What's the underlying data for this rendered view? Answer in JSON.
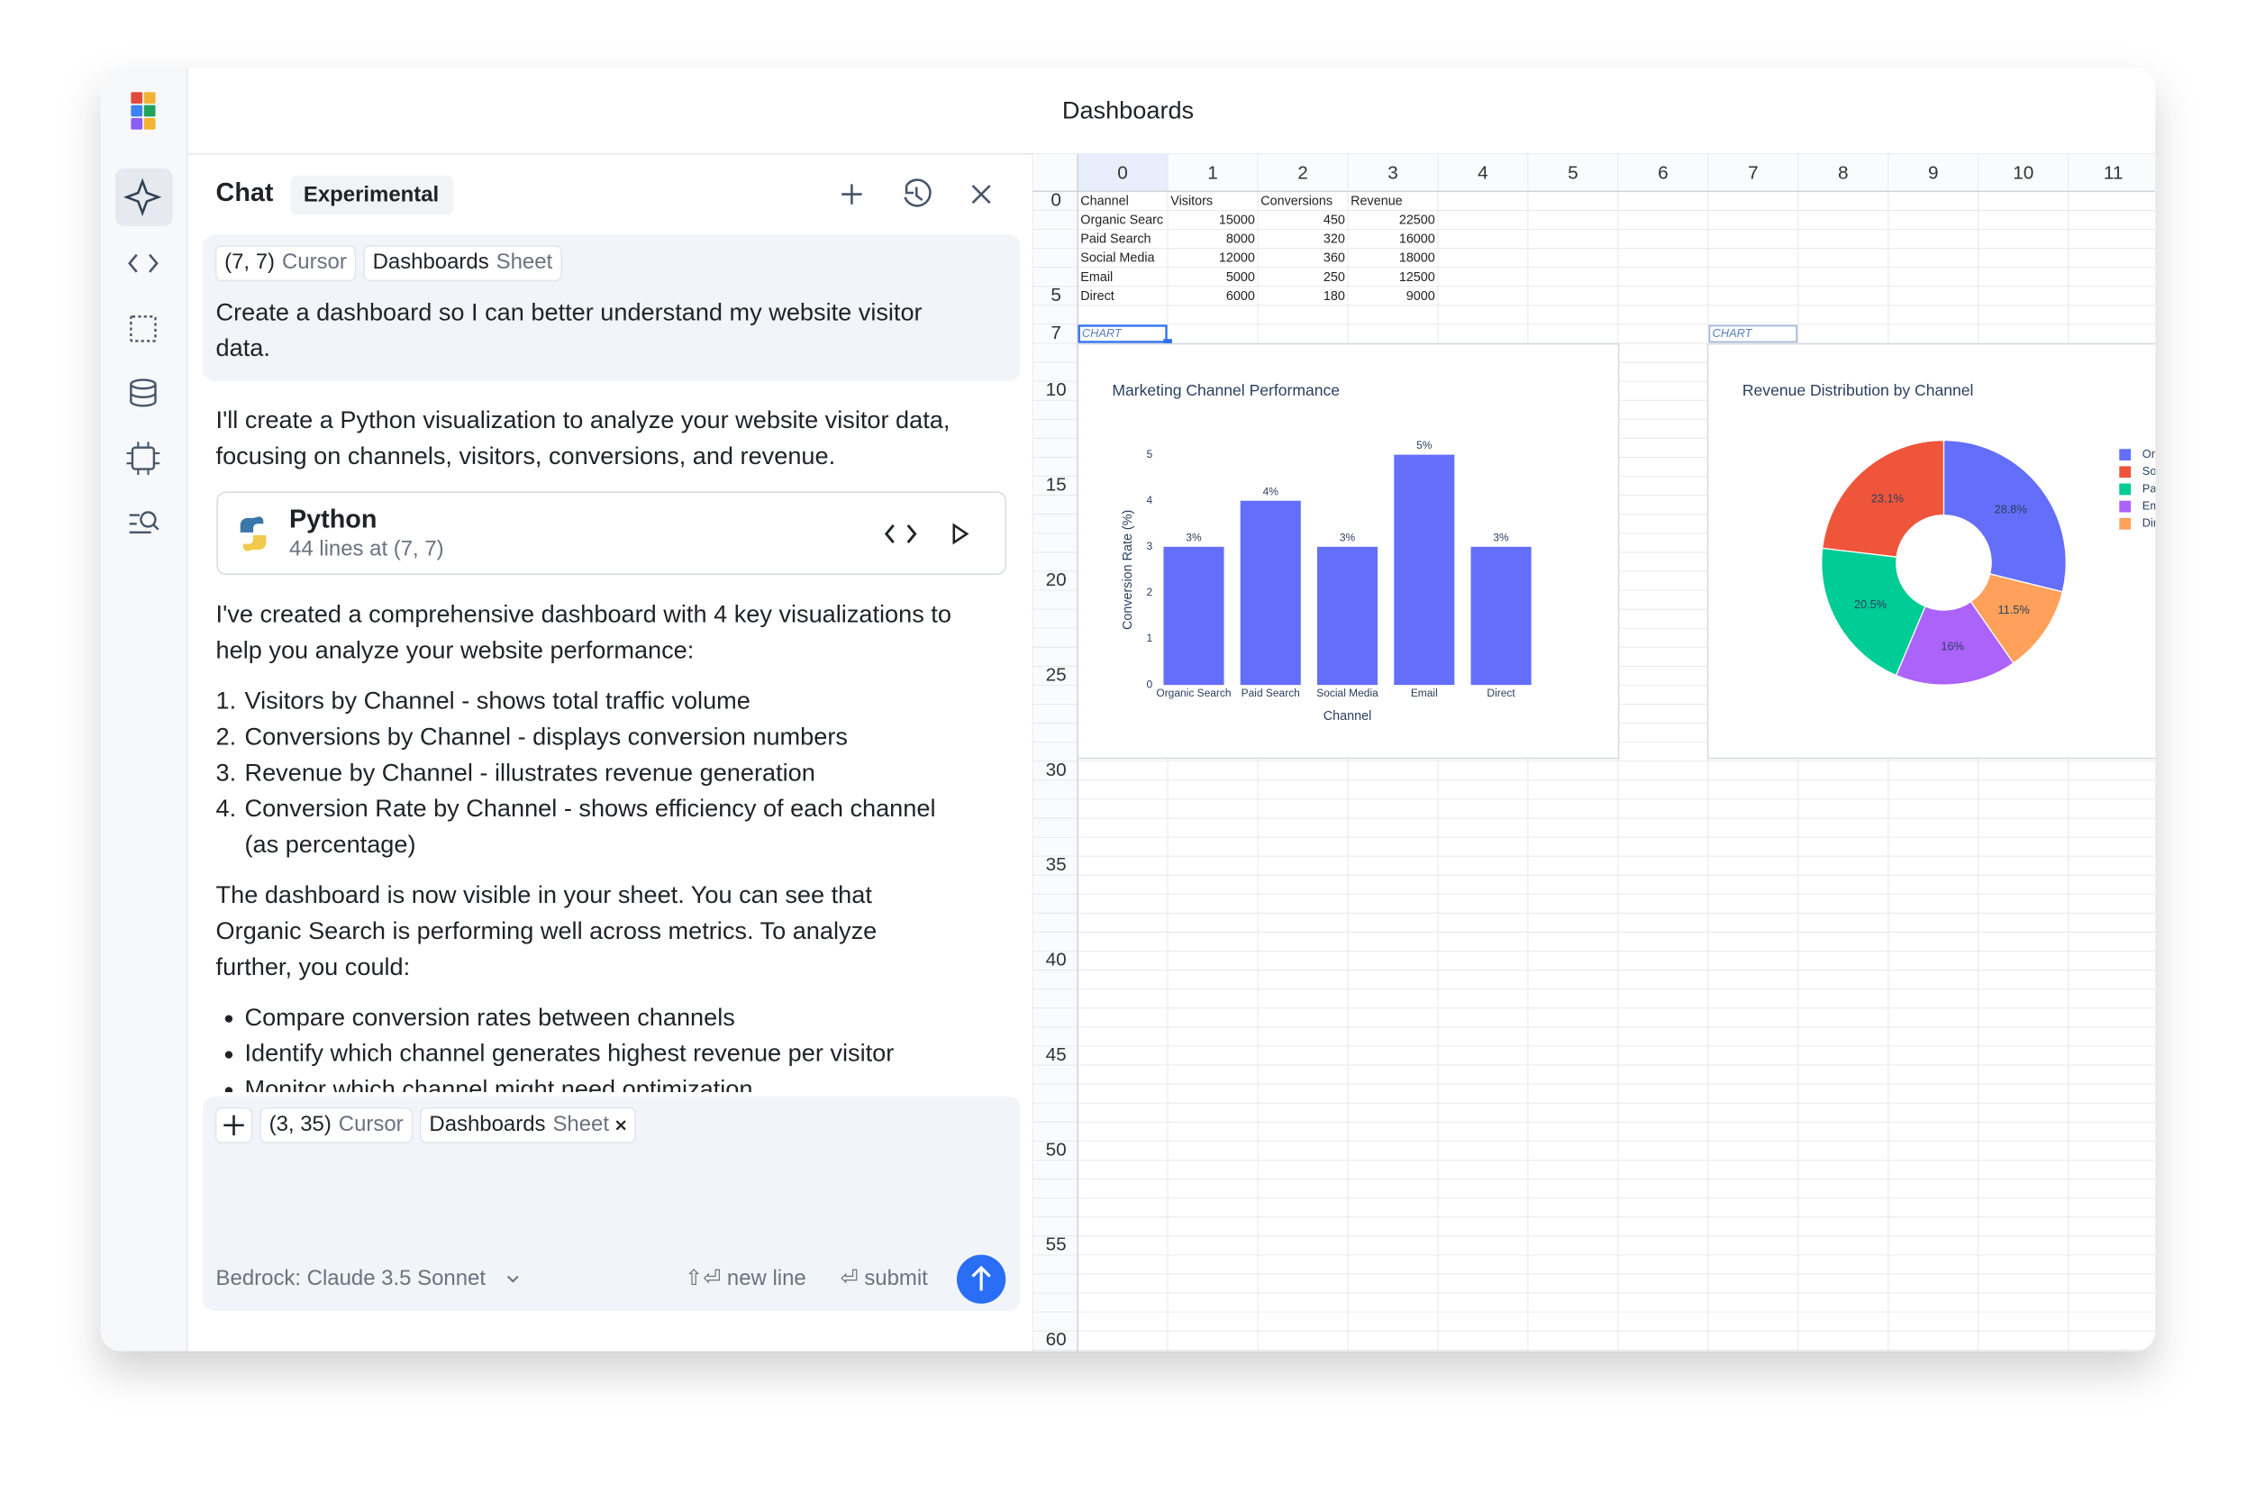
{
  "window": {
    "title": "Dashboards"
  },
  "chat": {
    "title": "Chat",
    "badge": "Experimental",
    "context": [
      {
        "label": "(7, 7)",
        "kind": "Cursor"
      },
      {
        "label": "Dashboards",
        "kind": "Sheet"
      }
    ],
    "user_message": [
      "Create a dashboard so I can better understand my website visitor",
      "data."
    ],
    "intro": [
      "I'll create a Python visualization to analyze your website visitor data,",
      "focusing on channels, visitors, conversions, and revenue."
    ],
    "code_block": {
      "language": "Python",
      "summary": "44 lines at (7, 7)"
    },
    "summary": [
      "I've created a comprehensive dashboard with 4 key visualizations to",
      "help you analyze your website performance:"
    ],
    "step_markers": [
      "1.",
      "2.",
      "3.",
      "4."
    ],
    "steps": [
      [
        "Visitors by Channel - shows total traffic volume"
      ],
      [
        "Conversions by Channel - displays conversion numbers"
      ],
      [
        "Revenue by Channel - illustrates revenue generation"
      ],
      [
        "Conversion Rate by Channel - shows efficiency of each channel",
        "(as percentage)"
      ]
    ],
    "note": [
      "The dashboard is now visible in your sheet. You can see that",
      "Organic Search is performing well across metrics. To analyze",
      "further, you could:"
    ],
    "suggestions": [
      "Compare conversion rates between channels",
      "Identify which channel generates highest revenue per visitor",
      "Monitor which channel might need optimization"
    ]
  },
  "composer": {
    "context": [
      {
        "label": "(3, 35)",
        "kind": "Cursor"
      },
      {
        "label": "Dashboards",
        "kind": "Sheet"
      }
    ],
    "model": "Bedrock: Claude 3.5 Sonnet",
    "hints": [
      "⇧⏎ new line",
      "⏎ submit"
    ]
  },
  "sheet": {
    "columns": [
      0,
      1,
      2,
      3,
      4,
      5,
      6,
      7,
      8,
      9,
      10,
      11
    ],
    "row_labels": [
      0,
      5,
      7,
      10,
      15,
      20,
      25,
      30,
      35,
      40,
      45,
      50,
      55,
      60
    ],
    "cells": [
      [
        "Channel",
        "Visitors",
        "Conversions",
        "Revenue"
      ],
      [
        "Organic Searc",
        15000,
        450,
        22500
      ],
      [
        "Paid Search",
        8000,
        320,
        16000
      ],
      [
        "Social Media",
        12000,
        360,
        18000
      ],
      [
        "Email",
        5000,
        250,
        12500
      ],
      [
        "Direct",
        6000,
        180,
        9000
      ]
    ],
    "chart_labels": [
      "CHART",
      "CHART"
    ]
  },
  "chart_data": [
    {
      "type": "bar",
      "title": "Marketing Channel Performance",
      "categories": [
        "Organic Search",
        "Paid Search",
        "Social Media",
        "Email",
        "Direct"
      ],
      "values": [
        3,
        4,
        3,
        5,
        3
      ],
      "value_labels": [
        "3%",
        "4%",
        "3%",
        "5%",
        "3%"
      ],
      "color": "#636efa",
      "ylim": [
        0,
        5
      ],
      "yticks": [
        0,
        1,
        2,
        3,
        4,
        5
      ],
      "xlabel": "Channel",
      "ylabel": "Conversion Rate (%)"
    },
    {
      "type": "pie",
      "title": "Revenue Distribution by Channel",
      "categories": [
        "Organic Search",
        "Social Media",
        "Paid Search",
        "Email",
        "Direct"
      ],
      "values": [
        28.8,
        23.1,
        20.5,
        16,
        11.5
      ],
      "value_labels": [
        "28.8%",
        "23.1%",
        "20.5%",
        "16%",
        "11.5%"
      ],
      "colors": [
        "#636efa",
        "#ef553b",
        "#00cc96",
        "#ab63fa",
        "#ffa15a"
      ]
    }
  ]
}
